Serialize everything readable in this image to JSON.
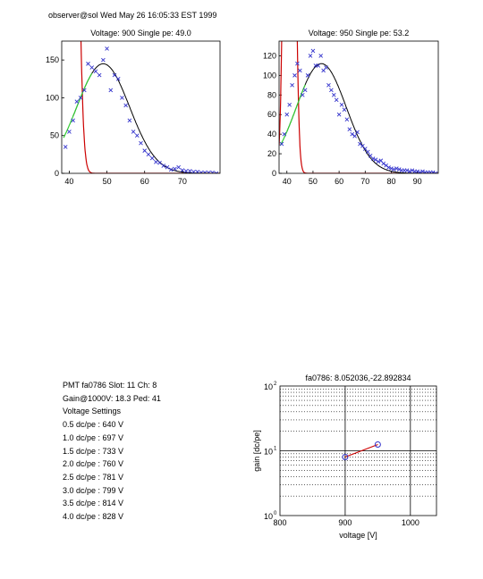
{
  "header": "observer@sol Wed May 26 16:05:33 EST 1999",
  "colors": {
    "data": "#3333cc",
    "fit": "#000000",
    "pedestal": "#cc0000",
    "onset": "#33cc33",
    "line": "#cc0000",
    "marker": "#3333cc"
  },
  "info": {
    "line1": "PMT fa0786 Slot: 11 Ch: 8",
    "line2": "Gain@1000V: 18.3 Ped: 41",
    "line3": "Voltage Settings",
    "settings": [
      "0.5 dc/pe : 640 V",
      "1.0 dc/pe : 697 V",
      "1.5 dc/pe : 733 V",
      "2.0 dc/pe : 760 V",
      "2.5 dc/pe : 781 V",
      "3.0 dc/pe : 799 V",
      "3.5 dc/pe : 814 V",
      "4.0 dc/pe : 828 V"
    ]
  },
  "chart_data": [
    {
      "type": "scatter",
      "title": "Voltage: 900 Single pe: 49.0",
      "xlim": [
        38,
        80
      ],
      "ylim": [
        0,
        175
      ],
      "xticks": [
        40,
        50,
        60,
        70
      ],
      "yticks": [
        0,
        50,
        100,
        150
      ],
      "points": [
        [
          39,
          35
        ],
        [
          40,
          55
        ],
        [
          41,
          70
        ],
        [
          42,
          95
        ],
        [
          43,
          100
        ],
        [
          44,
          110
        ],
        [
          45,
          145
        ],
        [
          46,
          140
        ],
        [
          47,
          135
        ],
        [
          48,
          130
        ],
        [
          49,
          150
        ],
        [
          50,
          165
        ],
        [
          51,
          110
        ],
        [
          52,
          130
        ],
        [
          53,
          125
        ],
        [
          54,
          100
        ],
        [
          55,
          90
        ],
        [
          56,
          70
        ],
        [
          57,
          55
        ],
        [
          58,
          50
        ],
        [
          59,
          40
        ],
        [
          60,
          30
        ],
        [
          61,
          25
        ],
        [
          62,
          20
        ],
        [
          63,
          15
        ],
        [
          64,
          14
        ],
        [
          65,
          10
        ],
        [
          66,
          8
        ],
        [
          67,
          5
        ],
        [
          68,
          6
        ],
        [
          69,
          8
        ],
        [
          70,
          4
        ],
        [
          71,
          3
        ],
        [
          72,
          3
        ],
        [
          73,
          2
        ],
        [
          74,
          2
        ],
        [
          75,
          1
        ],
        [
          76,
          1
        ],
        [
          77,
          1
        ],
        [
          78,
          1
        ],
        [
          79,
          0
        ]
      ],
      "fit": {
        "type": "gaussian",
        "amplitude": 145,
        "mean": 49.0,
        "sigma": 7.0,
        "x_range": [
          41,
          80
        ]
      },
      "onset": {
        "x_range": [
          38.5,
          46
        ]
      },
      "pedestal": {
        "type": "gaussian",
        "amplitude": 1000,
        "mean": 40.5,
        "sigma": 1.4
      }
    },
    {
      "type": "scatter",
      "title": "Voltage: 950 Single pe: 53.2",
      "xlim": [
        37,
        98
      ],
      "ylim": [
        0,
        135
      ],
      "xticks": [
        40,
        50,
        60,
        70,
        80,
        90
      ],
      "yticks": [
        0,
        20,
        40,
        60,
        80,
        100,
        120
      ],
      "points": [
        [
          38,
          30
        ],
        [
          39,
          40
        ],
        [
          40,
          60
        ],
        [
          41,
          70
        ],
        [
          42,
          90
        ],
        [
          43,
          100
        ],
        [
          44,
          112
        ],
        [
          45,
          105
        ],
        [
          46,
          80
        ],
        [
          47,
          85
        ],
        [
          48,
          100
        ],
        [
          49,
          120
        ],
        [
          50,
          125
        ],
        [
          51,
          110
        ],
        [
          52,
          110
        ],
        [
          53,
          120
        ],
        [
          54,
          105
        ],
        [
          55,
          108
        ],
        [
          56,
          90
        ],
        [
          57,
          85
        ],
        [
          58,
          80
        ],
        [
          59,
          75
        ],
        [
          60,
          60
        ],
        [
          61,
          70
        ],
        [
          62,
          65
        ],
        [
          63,
          55
        ],
        [
          64,
          45
        ],
        [
          65,
          40
        ],
        [
          66,
          38
        ],
        [
          67,
          42
        ],
        [
          68,
          30
        ],
        [
          69,
          28
        ],
        [
          70,
          25
        ],
        [
          71,
          22
        ],
        [
          72,
          18
        ],
        [
          73,
          15
        ],
        [
          74,
          14
        ],
        [
          75,
          12
        ],
        [
          76,
          13
        ],
        [
          77,
          10
        ],
        [
          78,
          8
        ],
        [
          79,
          6
        ],
        [
          80,
          5
        ],
        [
          81,
          4
        ],
        [
          82,
          5
        ],
        [
          83,
          4
        ],
        [
          84,
          3
        ],
        [
          85,
          3
        ],
        [
          86,
          3
        ],
        [
          87,
          2
        ],
        [
          88,
          3
        ],
        [
          89,
          2
        ],
        [
          90,
          2
        ],
        [
          91,
          1
        ],
        [
          92,
          2
        ],
        [
          93,
          1
        ],
        [
          94,
          1
        ],
        [
          95,
          1
        ],
        [
          96,
          1
        ],
        [
          97,
          0
        ]
      ],
      "fit": {
        "type": "gaussian",
        "amplitude": 112,
        "mean": 53.2,
        "sigma": 9.5,
        "x_range": [
          40,
          98
        ]
      },
      "onset": {
        "x_range": [
          37.5,
          47
        ]
      },
      "pedestal": {
        "type": "gaussian",
        "amplitude": 1000,
        "mean": 41.0,
        "sigma": 1.5
      }
    },
    {
      "type": "line",
      "title": "fa0786: 8.052036,-22.892834",
      "xlabel": "voltage [V]",
      "ylabel": "gain [dc/pe]",
      "xlim": [
        800,
        1040
      ],
      "ylim": [
        1,
        100
      ],
      "yscale": "log",
      "xticks": [
        800,
        900,
        1000
      ],
      "yticklabels": [
        {
          "base": "10",
          "exp": "0"
        },
        {
          "base": "10",
          "exp": "1"
        },
        {
          "base": "10",
          "exp": "2"
        }
      ],
      "grid": true,
      "points": [
        [
          900,
          8.0
        ],
        [
          950,
          12.5
        ]
      ]
    }
  ]
}
